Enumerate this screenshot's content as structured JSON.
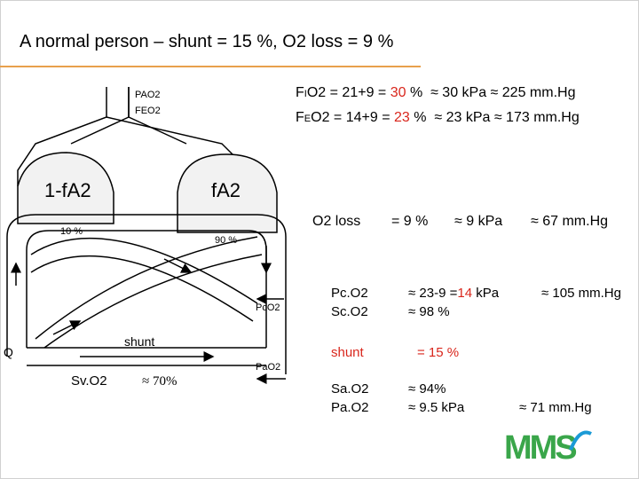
{
  "title": "A normal person – shunt = 15 %,  O2 loss  = 9 %",
  "colors": {
    "accent_line": "#e8a04c",
    "highlight": "#d9261c",
    "logo_green": "#3aa64a",
    "logo_blue": "#1b9ad6"
  },
  "fio2": {
    "prefix": "F",
    "sub": "I",
    "rest": "O2 = 21+9 = ",
    "value": "30",
    "suffix": " %",
    "approx": "≈ 30 kPa ≈ 225 mm.Hg"
  },
  "feo2": {
    "prefix": "F",
    "sub": "E",
    "rest": "O2 = 14+9 = ",
    "value": "23",
    "suffix": " %",
    "approx": "≈ 23 kPa ≈ 173 mm.Hg"
  },
  "o2loss": {
    "label": "O2 loss",
    "pct": "= 9 %",
    "kpa": "≈ 9 kPa",
    "mmhg": "≈ 67 mm.Hg"
  },
  "pco2": {
    "label": "Pc.O2",
    "prefix": "≈  23-9 =",
    "value": "14",
    "unit": " kPa",
    "mmhg": "≈ 105 mm.Hg"
  },
  "sco2": {
    "label": "Sc.O2",
    "value": "≈  98 %"
  },
  "shunt": {
    "label": "shunt",
    "value": "= 15 %"
  },
  "sao2": {
    "label": "Sa.O2",
    "value": "≈  94%"
  },
  "pao2": {
    "label": "Pa.O2",
    "value": "≈  9.5 kPa",
    "mmhg": "≈ 71 mm.Hg"
  },
  "diagram": {
    "pao2_top": "PAO2",
    "feo2_top": "FEO2",
    "lung_left": "1-fA2",
    "lung_right": "fA2",
    "pct_left": "10 %",
    "pct_right": "90 %",
    "pcco2": "PcO2",
    "pao2_right": "PaO2",
    "shunt": "shunt",
    "q": "Q",
    "svo2": "Sv.O2",
    "svo2_val": "≈  70%"
  },
  "logo": {
    "text": "MMS"
  }
}
